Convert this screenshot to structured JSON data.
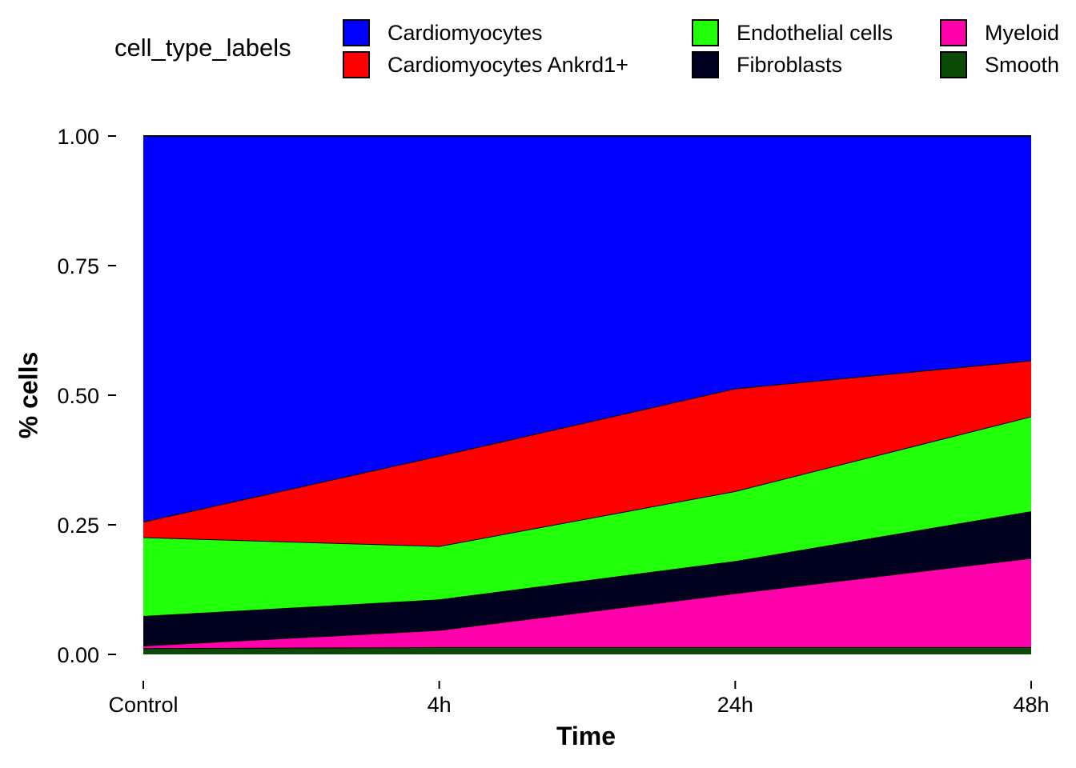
{
  "chart_data": {
    "type": "area",
    "stacked": true,
    "x": [
      "Control",
      "4h",
      "24h",
      "48h"
    ],
    "xlabel": "Time",
    "ylabel": "% cells",
    "ylim": [
      0,
      1
    ],
    "yticks": [
      "0.00",
      "0.25",
      "0.50",
      "0.75",
      "1.00"
    ],
    "legend_title": "cell_type_labels",
    "legend_position": "top",
    "grid": false,
    "series": [
      {
        "name": "Smooth",
        "color": "#0a4a06",
        "values": [
          0.012,
          0.014,
          0.014,
          0.014
        ]
      },
      {
        "name": "Myeloid",
        "color": "#ff00aa",
        "values": [
          0.005,
          0.033,
          0.104,
          0.172
        ]
      },
      {
        "name": "Fibroblasts",
        "color": "#00001f",
        "values": [
          0.057,
          0.059,
          0.062,
          0.09
        ]
      },
      {
        "name": "Endothelial cells",
        "color": "#22ff0b",
        "values": [
          0.152,
          0.103,
          0.135,
          0.183
        ]
      },
      {
        "name": "Cardiomyocytes Ankrd1+",
        "color": "#ff0000",
        "values": [
          0.03,
          0.174,
          0.198,
          0.108
        ]
      },
      {
        "name": "Cardiomyocytes",
        "color": "#0000ff",
        "values": [
          0.744,
          0.617,
          0.487,
          0.433
        ]
      }
    ]
  },
  "legend": [
    {
      "label": "Cardiomyocytes",
      "color": "#0000ff"
    },
    {
      "label": "Cardiomyocytes Ankrd1+",
      "color": "#ff0000"
    },
    {
      "label": "Endothelial cells",
      "color": "#22ff0b"
    },
    {
      "label": "Fibroblasts",
      "color": "#00001f"
    },
    {
      "label": "Myeloid",
      "color": "#ff00aa"
    },
    {
      "label": "Smooth",
      "color": "#0a4a06"
    }
  ]
}
